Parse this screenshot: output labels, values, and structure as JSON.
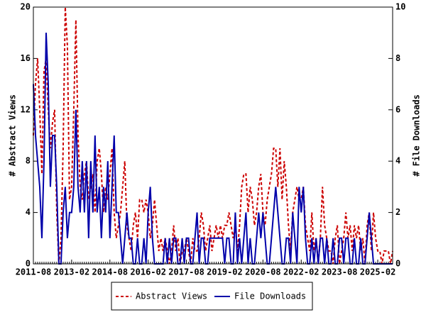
{
  "chart_data": {
    "type": "line",
    "x": [
      "2011-08",
      "2011-09",
      "2011-10",
      "2011-11",
      "2011-12",
      "2012-01",
      "2012-02",
      "2012-03",
      "2012-04",
      "2012-05",
      "2012-06",
      "2012-07",
      "2012-08",
      "2012-09",
      "2012-10",
      "2012-11",
      "2012-12",
      "2013-01",
      "2013-02",
      "2013-03",
      "2013-04",
      "2013-05",
      "2013-06",
      "2013-07",
      "2013-08",
      "2013-09",
      "2013-10",
      "2013-11",
      "2013-12",
      "2014-01",
      "2014-02",
      "2014-03",
      "2014-04",
      "2014-05",
      "2014-06",
      "2014-07",
      "2014-08",
      "2014-09",
      "2014-10",
      "2014-11",
      "2014-12",
      "2015-01",
      "2015-02",
      "2015-03",
      "2015-04",
      "2015-05",
      "2015-06",
      "2015-07",
      "2015-08",
      "2015-09",
      "2015-10",
      "2015-11",
      "2015-12",
      "2016-01",
      "2016-02",
      "2016-03",
      "2016-04",
      "2016-05",
      "2016-06",
      "2016-07",
      "2016-08",
      "2016-09",
      "2016-10",
      "2016-11",
      "2016-12",
      "2017-01",
      "2017-02",
      "2017-03",
      "2017-04",
      "2017-05",
      "2017-06",
      "2017-07",
      "2017-08",
      "2017-09",
      "2017-10",
      "2017-11",
      "2017-12",
      "2018-01",
      "2018-02",
      "2018-03",
      "2018-04",
      "2018-05",
      "2018-06",
      "2018-07",
      "2018-08",
      "2018-09",
      "2018-10",
      "2018-11",
      "2018-12",
      "2019-01",
      "2019-02",
      "2019-03",
      "2019-04",
      "2019-05",
      "2019-06",
      "2019-07",
      "2019-08",
      "2019-09",
      "2019-10",
      "2019-11",
      "2019-12",
      "2020-01",
      "2020-02",
      "2020-03",
      "2020-04",
      "2020-05",
      "2020-06",
      "2020-07",
      "2020-08",
      "2020-09",
      "2020-10",
      "2020-11",
      "2020-12",
      "2021-01",
      "2021-02",
      "2021-03",
      "2021-04",
      "2021-05",
      "2021-06",
      "2021-07",
      "2021-08",
      "2021-09",
      "2021-10",
      "2021-11",
      "2021-12",
      "2022-01",
      "2022-02",
      "2022-03",
      "2022-04",
      "2022-05",
      "2022-06",
      "2022-07",
      "2022-08",
      "2022-09",
      "2022-10",
      "2022-11",
      "2022-12",
      "2023-01",
      "2023-02",
      "2023-03",
      "2023-04",
      "2023-05",
      "2023-06",
      "2023-07",
      "2023-08",
      "2023-09",
      "2023-10",
      "2023-11",
      "2023-12",
      "2024-01",
      "2024-02",
      "2024-03",
      "2024-04",
      "2024-05",
      "2024-06",
      "2024-07",
      "2024-08",
      "2024-09",
      "2024-10",
      "2024-11",
      "2024-12",
      "2025-01",
      "2025-02",
      "2025-03",
      "2025-04",
      "2025-05",
      "2025-06",
      "2025-07",
      "2025-08",
      "2025-09"
    ],
    "series": [
      {
        "name": "Abstract Views",
        "color": "#cc0000",
        "dash": true,
        "axis": "y",
        "values": [
          10,
          14,
          16,
          12,
          7,
          15,
          16,
          12,
          9,
          11,
          12,
          4,
          0,
          2,
          9,
          20,
          17,
          5,
          6,
          12,
          19,
          10,
          6,
          5,
          7,
          8,
          5,
          6,
          7,
          4,
          8,
          9,
          7,
          4,
          6,
          5,
          7,
          9,
          4,
          2,
          3,
          4,
          6,
          8,
          3,
          2,
          1,
          3,
          4,
          2,
          5,
          5,
          4,
          5,
          4,
          2,
          3,
          5,
          3,
          1,
          2,
          1,
          2,
          1,
          0,
          1,
          3,
          1,
          2,
          0,
          1,
          1,
          2,
          1,
          0,
          2,
          1,
          1,
          2,
          4,
          3,
          1,
          2,
          3,
          1,
          2,
          3,
          2,
          3,
          2,
          3,
          3,
          4,
          3,
          2,
          3,
          1,
          3,
          6,
          7,
          7,
          4,
          6,
          5,
          3,
          4,
          6,
          7,
          4,
          3,
          5,
          6,
          7,
          9,
          9,
          6,
          9,
          5,
          8,
          6,
          3,
          1,
          4,
          5,
          6,
          5,
          5,
          6,
          3,
          2,
          1,
          4,
          1,
          2,
          0,
          2,
          6,
          3,
          2,
          1,
          1,
          0,
          2,
          3,
          0,
          1,
          2,
          4,
          2,
          3,
          1,
          3,
          2,
          3,
          1,
          2,
          0,
          3,
          4,
          1,
          4,
          2,
          1,
          1,
          0,
          1,
          1,
          1,
          0,
          1
        ]
      },
      {
        "name": "File Downloads",
        "color": "#0000aa",
        "dash": false,
        "axis": "y2",
        "values": [
          7,
          5,
          4,
          3,
          1,
          4,
          9,
          7,
          3,
          5,
          5,
          3,
          0,
          0,
          2,
          3,
          1,
          2,
          2,
          3,
          6,
          3,
          2,
          4,
          2,
          4,
          1,
          4,
          2,
          5,
          2,
          3,
          1,
          3,
          2,
          4,
          1,
          3,
          5,
          2,
          2,
          1,
          0,
          1,
          2,
          1,
          1,
          0,
          0,
          1,
          0,
          0,
          1,
          0,
          2,
          3,
          1,
          0,
          0,
          0,
          0,
          0,
          1,
          0,
          1,
          0,
          1,
          1,
          0,
          0,
          1,
          0,
          1,
          1,
          0,
          0,
          1,
          2,
          0,
          1,
          1,
          0,
          0,
          1,
          1,
          1,
          1,
          1,
          1,
          1,
          0,
          1,
          1,
          0,
          0,
          2,
          0,
          1,
          0,
          1,
          2,
          0,
          1,
          0,
          0,
          1,
          2,
          1,
          2,
          1,
          0,
          0,
          1,
          2,
          3,
          2,
          1,
          0,
          0,
          1,
          1,
          0,
          2,
          1,
          0,
          3,
          2,
          3,
          1,
          0,
          0,
          1,
          0,
          1,
          0,
          1,
          1,
          0,
          1,
          0,
          0,
          1,
          0,
          0,
          1,
          1,
          0,
          1,
          1,
          0,
          0,
          1,
          0,
          0,
          1,
          0,
          0,
          1,
          2,
          1,
          0,
          0,
          0,
          0,
          0,
          0,
          0,
          0,
          0,
          0
        ]
      }
    ],
    "xlim": [
      "2011-08",
      "2025-09"
    ],
    "xticks": [
      "2011-08",
      "2013-02",
      "2014-08",
      "2016-02",
      "2017-08",
      "2019-02",
      "2020-08",
      "2022-02",
      "2023-08",
      "2025-02"
    ],
    "ylabel": "# Abstract Views",
    "ylim": [
      0,
      20
    ],
    "yticks": [
      0,
      4,
      8,
      12,
      16,
      20
    ],
    "y2label": "# File Downloads",
    "y2lim": [
      0,
      10
    ],
    "y2ticks": [
      0,
      2,
      4,
      6,
      8,
      10
    ],
    "legend": "bottom"
  }
}
